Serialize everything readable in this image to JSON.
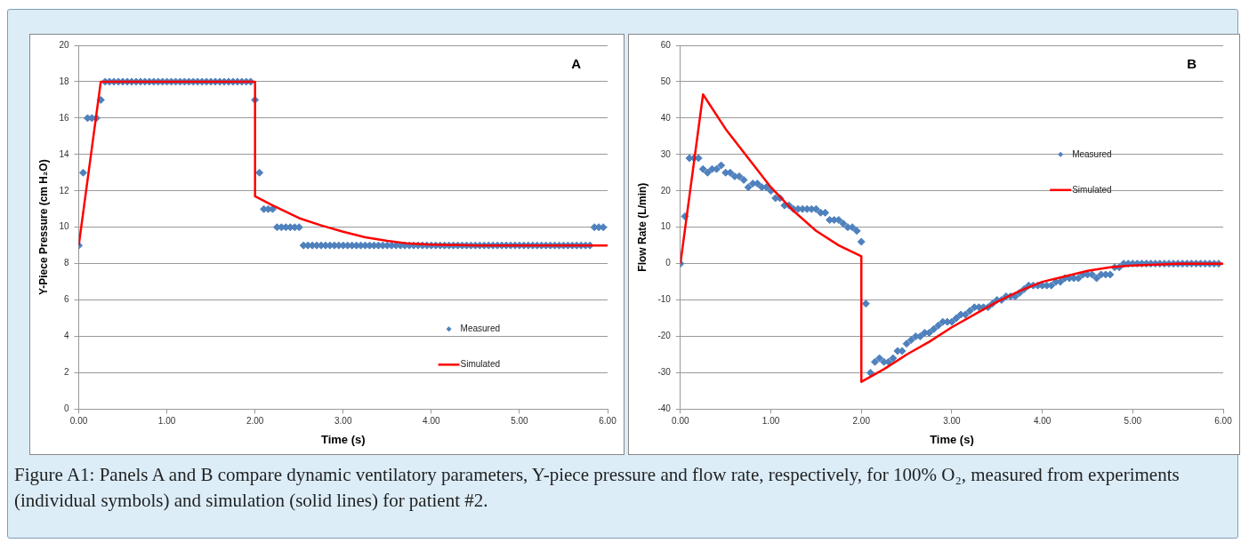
{
  "chart_data": [
    {
      "type": "scatter",
      "xlabel": "Time (s)",
      "ylabel": "Y-Piece Pressure (cm H₂O)",
      "annotations": [
        "A"
      ],
      "x": [
        0,
        0.05,
        0.1,
        0.15,
        0.2,
        0.25,
        0.3,
        0.35,
        0.4,
        0.45,
        0.5,
        0.55,
        0.6,
        0.65,
        0.7,
        0.75,
        0.8,
        0.85,
        0.9,
        0.95,
        1,
        1.05,
        1.1,
        1.15,
        1.2,
        1.25,
        1.3,
        1.35,
        1.4,
        1.45,
        1.5,
        1.55,
        1.6,
        1.65,
        1.7,
        1.75,
        1.8,
        1.85,
        1.9,
        1.95,
        2,
        2.05,
        2.1,
        2.15,
        2.2,
        2.25,
        2.3,
        2.35,
        2.4,
        2.45,
        2.5,
        2.55,
        2.6,
        2.65,
        2.7,
        2.75,
        2.8,
        2.85,
        2.9,
        2.95,
        3,
        3.05,
        3.1,
        3.15,
        3.2,
        3.25,
        3.3,
        3.35,
        3.4,
        3.45,
        3.5,
        3.55,
        3.6,
        3.65,
        3.7,
        3.75,
        3.8,
        3.85,
        3.9,
        3.95,
        4,
        4.05,
        4.1,
        4.15,
        4.2,
        4.25,
        4.3,
        4.35,
        4.4,
        4.45,
        4.5,
        4.55,
        4.6,
        4.65,
        4.7,
        4.75,
        4.8,
        4.85,
        4.9,
        4.95,
        5,
        5.05,
        5.1,
        5.15,
        5.2,
        5.25,
        5.3,
        5.35,
        5.4,
        5.45,
        5.5,
        5.55,
        5.6,
        5.65,
        5.7,
        5.75,
        5.8,
        5.85,
        5.9,
        5.95
      ],
      "series": [
        {
          "name": "Measured",
          "type": "scatter",
          "marker": "diamond",
          "color": "#4f81bd",
          "values": [
            9,
            13,
            16,
            16,
            16,
            17,
            18,
            18,
            18,
            18,
            18,
            18,
            18,
            18,
            18,
            18,
            18,
            18,
            18,
            18,
            18,
            18,
            18,
            18,
            18,
            18,
            18,
            18,
            18,
            18,
            18,
            18,
            18,
            18,
            18,
            18,
            18,
            18,
            18,
            18,
            17,
            13,
            11,
            11,
            11,
            10,
            10,
            10,
            10,
            10,
            10,
            9,
            9,
            9,
            9,
            9,
            9,
            9,
            9,
            9,
            9,
            9,
            9,
            9,
            9,
            9,
            9,
            9,
            9,
            9,
            9,
            9,
            9,
            9,
            9,
            9,
            9,
            9,
            9,
            9,
            9,
            9,
            9,
            9,
            9,
            9,
            9,
            9,
            9,
            9,
            9,
            9,
            9,
            9,
            9,
            9,
            9,
            9,
            9,
            9,
            9,
            9,
            9,
            9,
            9,
            9,
            9,
            9,
            9,
            9,
            9,
            9,
            9,
            9,
            9,
            9,
            9,
            10,
            10,
            10
          ]
        },
        {
          "name": "Simulated",
          "type": "line",
          "marker": "none",
          "color": "#ff0000",
          "x": [
            0,
            0.25,
            2,
            2,
            2.2,
            2.5,
            2.75,
            3,
            3.25,
            3.5,
            3.75,
            4,
            4.5,
            6
          ],
          "values": [
            9,
            18,
            18,
            11.7,
            11.2,
            10.5,
            10.1,
            9.75,
            9.45,
            9.25,
            9.1,
            9.05,
            9,
            9
          ]
        }
      ],
      "xlim": [
        0,
        6
      ],
      "xticks": [
        {
          "value": 0,
          "label": "0.00"
        },
        {
          "value": 1,
          "label": "1.00"
        },
        {
          "value": 2,
          "label": "2.00"
        },
        {
          "value": 3,
          "label": "3.00"
        },
        {
          "value": 4,
          "label": "4.00"
        },
        {
          "value": 5,
          "label": "5.00"
        },
        {
          "value": 6,
          "label": "6.00"
        }
      ],
      "ylim": [
        0,
        20
      ],
      "yticks": [
        0,
        2,
        4,
        6,
        8,
        10,
        12,
        14,
        16,
        18,
        20
      ],
      "grid": "y",
      "legend": "bottom right"
    },
    {
      "type": "scatter",
      "xlabel": "Time (s)",
      "ylabel": "Flow Rate (L/min)",
      "annotations": [
        "B"
      ],
      "x": [
        0,
        0.05,
        0.1,
        0.15,
        0.2,
        0.25,
        0.3,
        0.35,
        0.4,
        0.45,
        0.5,
        0.55,
        0.6,
        0.65,
        0.7,
        0.75,
        0.8,
        0.85,
        0.9,
        0.95,
        1,
        1.05,
        1.1,
        1.15,
        1.2,
        1.25,
        1.3,
        1.35,
        1.4,
        1.45,
        1.5,
        1.55,
        1.6,
        1.65,
        1.7,
        1.75,
        1.8,
        1.85,
        1.9,
        1.95,
        2,
        2.05,
        2.1,
        2.15,
        2.2,
        2.25,
        2.3,
        2.35,
        2.4,
        2.45,
        2.5,
        2.55,
        2.6,
        2.65,
        2.7,
        2.75,
        2.8,
        2.85,
        2.9,
        2.95,
        3,
        3.05,
        3.1,
        3.15,
        3.2,
        3.25,
        3.3,
        3.35,
        3.4,
        3.45,
        3.5,
        3.55,
        3.6,
        3.65,
        3.7,
        3.75,
        3.8,
        3.85,
        3.9,
        3.95,
        4,
        4.05,
        4.1,
        4.15,
        4.2,
        4.25,
        4.3,
        4.35,
        4.4,
        4.45,
        4.5,
        4.55,
        4.6,
        4.65,
        4.7,
        4.75,
        4.8,
        4.85,
        4.9,
        4.95,
        5,
        5.05,
        5.1,
        5.15,
        5.2,
        5.25,
        5.3,
        5.35,
        5.4,
        5.45,
        5.5,
        5.55,
        5.6,
        5.65,
        5.7,
        5.75,
        5.8,
        5.85,
        5.9,
        5.95
      ],
      "series": [
        {
          "name": "Measured",
          "type": "scatter",
          "marker": "diamond",
          "color": "#4f81bd",
          "values": [
            0,
            13,
            29,
            29,
            29,
            26,
            25,
            26,
            26,
            27,
            25,
            25,
            24,
            24,
            23,
            21,
            22,
            22,
            21,
            21,
            20,
            18,
            18,
            16,
            16,
            15,
            15,
            15,
            15,
            15,
            15,
            14,
            14,
            12,
            12,
            12,
            11,
            10,
            10,
            9,
            6,
            -11,
            -30,
            -27,
            -26,
            -27,
            -27,
            -26,
            -24,
            -24,
            -22,
            -21,
            -20,
            -20,
            -19,
            -19,
            -18,
            -17,
            -16,
            -16,
            -16,
            -15,
            -14,
            -14,
            -13,
            -12,
            -12,
            -12,
            -12,
            -11,
            -10,
            -10,
            -9,
            -9,
            -9,
            -8,
            -7,
            -6,
            -6,
            -6,
            -6,
            -6,
            -6,
            -5,
            -5,
            -4,
            -4,
            -4,
            -4,
            -3,
            -3,
            -3,
            -4,
            -3,
            -3,
            -3,
            -1,
            -1,
            0,
            0,
            0,
            0,
            0,
            0,
            0,
            0,
            0,
            0,
            0,
            0,
            0,
            0,
            0,
            0,
            0,
            0,
            0,
            0,
            0,
            0
          ]
        },
        {
          "name": "Simulated",
          "type": "line",
          "marker": "none",
          "color": "#ff0000",
          "x": [
            0,
            0.25,
            0.5,
            0.75,
            1,
            1.25,
            1.5,
            1.75,
            2,
            2,
            2.25,
            2.5,
            2.75,
            3,
            3.25,
            3.5,
            3.75,
            4,
            4.25,
            4.5,
            4.75,
            5,
            5.5,
            6
          ],
          "values": [
            0,
            46.5,
            37,
            29,
            21,
            14.5,
            9,
            5,
            2,
            -32.5,
            -29,
            -25,
            -21.5,
            -17.5,
            -14,
            -10.5,
            -7.5,
            -5,
            -3.5,
            -2,
            -1,
            -0.5,
            0,
            0
          ]
        }
      ],
      "xlim": [
        0,
        6
      ],
      "xticks": [
        {
          "value": 0,
          "label": "0.00"
        },
        {
          "value": 1,
          "label": "1.00"
        },
        {
          "value": 2,
          "label": "2.00"
        },
        {
          "value": 3,
          "label": "3.00"
        },
        {
          "value": 4,
          "label": "4.00"
        },
        {
          "value": 5,
          "label": "5.00"
        },
        {
          "value": 6,
          "label": "6.00"
        }
      ],
      "ylim": [
        -40,
        60
      ],
      "yticks": [
        -40,
        -30,
        -20,
        -10,
        0,
        10,
        20,
        30,
        40,
        50,
        60
      ],
      "grid": "y",
      "legend": "top right"
    },
    {
      "type": "other",
      "annotations": [
        "Figure A1: Panels A and B compare dynamic ventilatory parameters, Y-piece pressure and flow rate, respectively, for 100% O₂, measured from experiments (individual symbols) and simulation (solid lines) for patient #2."
      ]
    }
  ]
}
